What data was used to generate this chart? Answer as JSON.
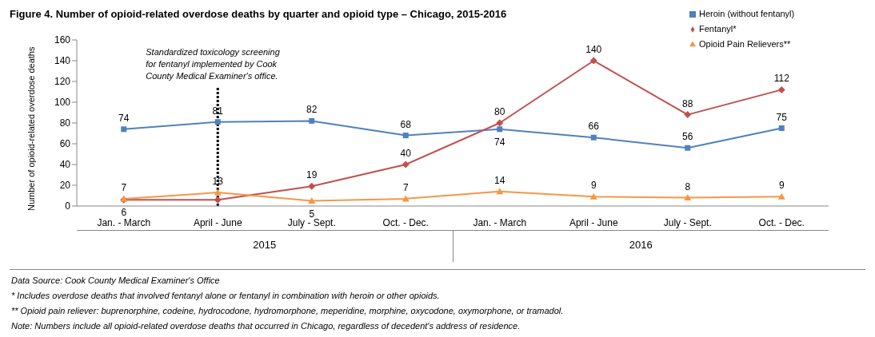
{
  "chart_data": {
    "type": "line",
    "title": "Figure 4. Number of opioid-related overdose deaths by quarter and opioid type – Chicago, 2015-2016",
    "ylabel": "Number of opioid-related overdose deaths",
    "categories": [
      "Jan. - March",
      "April - June",
      "July - Sept.",
      "Oct. - Dec.",
      "Jan. - March",
      "April - June",
      "July - Sept.",
      "Oct. - Dec."
    ],
    "series": [
      {
        "name": "Heroin (without fentanyl)",
        "color": "#4f81bd",
        "marker": "square",
        "values": [
          74,
          81,
          82,
          68,
          74,
          66,
          56,
          75
        ],
        "value_labels": [
          "74",
          "81",
          "82",
          "68",
          "74",
          "66",
          "56",
          "75"
        ]
      },
      {
        "name": "Fentanyl*",
        "color": "#c0504d",
        "marker": "diamond",
        "values": [
          6,
          6,
          19,
          40,
          80,
          140,
          88,
          112
        ],
        "value_labels": [
          "6",
          null,
          "19",
          "40",
          "80",
          "140",
          "88",
          "112"
        ]
      },
      {
        "name": "Opioid Pain Relievers**",
        "color": "#f79646",
        "marker": "triangle",
        "values": [
          7,
          13,
          5,
          7,
          14,
          9,
          8,
          9
        ],
        "value_labels": [
          "7",
          "13",
          "5",
          "7",
          "14",
          "9",
          "8",
          "9"
        ]
      }
    ],
    "ylim": [
      0,
      160
    ],
    "yticks": [
      0,
      20,
      40,
      60,
      80,
      100,
      120,
      140,
      160
    ],
    "grid": false,
    "legend": "top right",
    "ref_lines": [
      {
        "axis": "x",
        "value": "April - June",
        "label": "Standardized toxicology screening for fentanyl implemented by Cook County Medical Examiner's office.",
        "line_style": "dotted",
        "color": "#000000"
      }
    ],
    "annotations": [
      "2015",
      "2016",
      "Data Source: Cook County Medical Examiner's Office",
      "* Includes overdose deaths that involved fentanyl alone or fentanyl in combination with heroin or other opioids.",
      "** Opioid pain reliever: buprenorphine, codeine, hydrocodone, hydromorphone, meperidine, morphine, oxycodone, oxymorphone, or tramadol.",
      "Note: Numbers include all opioid-related overdose deaths that occurred in Chicago, regardless of decedent's address of residence."
    ]
  }
}
